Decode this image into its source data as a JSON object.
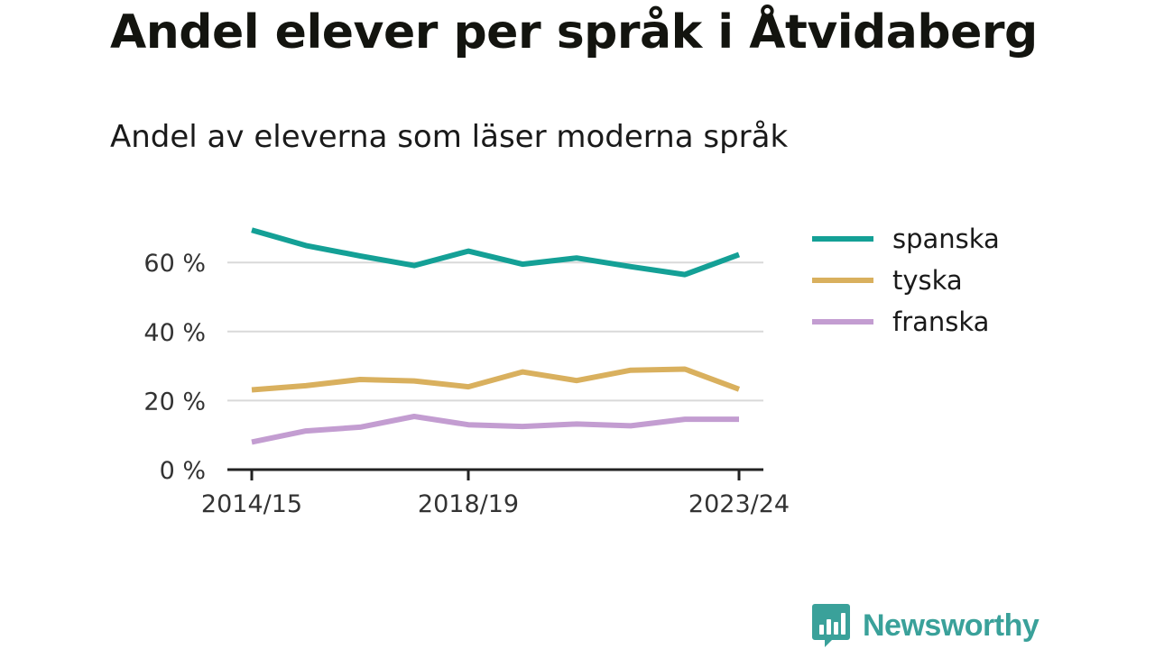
{
  "title": "Andel elever per språk i Åtvidaberg",
  "subtitle": "Andel av eleverna som läser moderna språk",
  "chart_data": {
    "type": "line",
    "x": [
      "2014/15",
      "2015/16",
      "2016/17",
      "2017/18",
      "2018/19",
      "2019/20",
      "2020/21",
      "2021/22",
      "2022/23",
      "2023/24"
    ],
    "x_tick_labels": [
      "2014/15",
      "2018/19",
      "2023/24"
    ],
    "series": [
      {
        "name": "spanska",
        "color": "#14a096",
        "values": [
          69.4,
          64.9,
          61.9,
          59.1,
          63.3,
          59.5,
          61.3,
          58.8,
          56.5,
          62.3
        ]
      },
      {
        "name": "tyska",
        "color": "#d9b05e",
        "values": [
          23.1,
          24.3,
          26.1,
          25.7,
          24.0,
          28.3,
          25.8,
          28.8,
          29.1,
          23.3
        ]
      },
      {
        "name": "franska",
        "color": "#c39dd1",
        "values": [
          8.0,
          11.2,
          12.3,
          15.4,
          13.0,
          12.5,
          13.2,
          12.7,
          14.6,
          14.6
        ]
      }
    ],
    "y_ticks": [
      0,
      20,
      40,
      60
    ],
    "y_tick_labels": [
      "0 %",
      "20 %",
      "40 %",
      "60 %"
    ],
    "ylim": [
      0,
      70
    ],
    "grid": true,
    "legend_position": "right"
  },
  "brand": {
    "name": "Newsworthy",
    "color": "#3aa19a",
    "icon": "bar-chart-speech-bubble-icon"
  }
}
